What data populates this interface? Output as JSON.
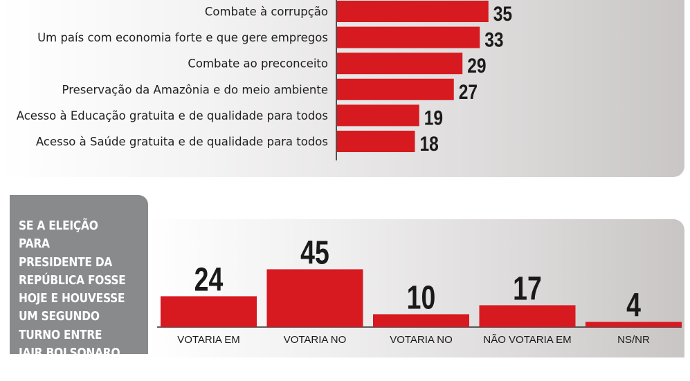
{
  "chart_data": [
    {
      "type": "bar",
      "orientation": "horizontal",
      "categories": [
        "Combate à corrupção",
        "Um país com economia forte e que gere empregos",
        "Combate ao preconceito",
        "Preservação da Amazônia e do meio ambiente",
        "Acesso à Educação gratuita e de qualidade para todos",
        "Acesso à Saúde gratuita e de qualidade para todos"
      ],
      "values": [
        35,
        33,
        29,
        27,
        19,
        18
      ],
      "value_labels": [
        "35",
        "33",
        "29",
        "27",
        "19",
        "18"
      ],
      "bar_color": "#d71920"
    },
    {
      "type": "bar",
      "orientation": "vertical",
      "title": "Se a eleição para presidente da República fosse hoje e houvesse um segundo turno entre Jair Bolsonaro e",
      "categories": [
        "VOTARIA EM",
        "VOTARIA NO",
        "VOTARIA NO",
        "NÃO VOTARIA EM",
        "NS/NR"
      ],
      "values": [
        24,
        45,
        10,
        17,
        4
      ],
      "value_labels": [
        "24",
        "45",
        "10",
        "17",
        "4"
      ],
      "bar_color": "#d71920"
    }
  ]
}
